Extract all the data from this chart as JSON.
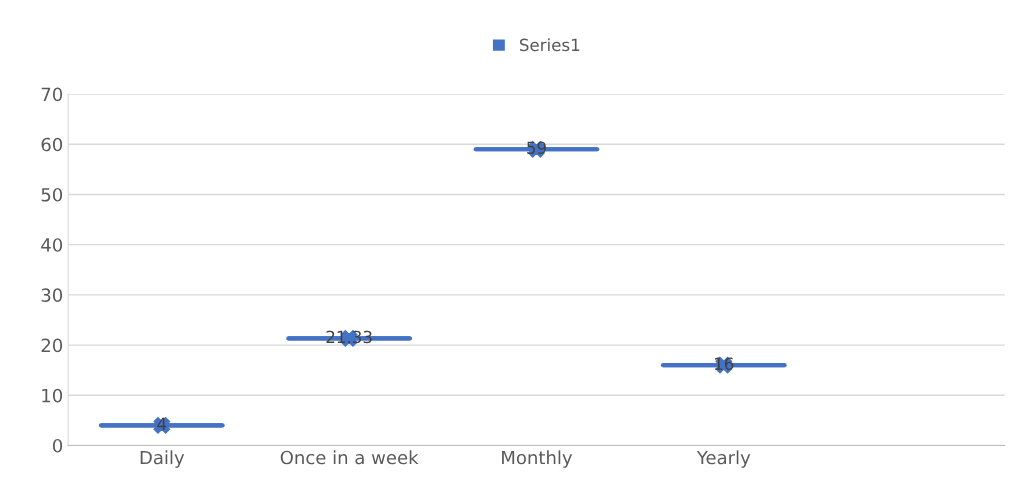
{
  "chart_data": {
    "type": "box",
    "categories": [
      "Daily",
      "Once in a week",
      "Monthly",
      "Yearly",
      null
    ],
    "series": [
      {
        "name": "Series1",
        "color": "#4472c4",
        "boxes": [
          {
            "low": 4,
            "q1": 4,
            "median": 4,
            "q3": 4,
            "high": 4,
            "mean": 4
          },
          {
            "low": 21.33,
            "q1": 21.33,
            "median": 21.33,
            "q3": 21.33,
            "high": 21.33,
            "mean": 21.33
          },
          {
            "low": 59,
            "q1": 59,
            "median": 59,
            "q3": 59,
            "high": 59,
            "mean": 59
          },
          {
            "low": 16,
            "q1": 16,
            "median": 16,
            "q3": 16,
            "high": 16,
            "mean": 16
          },
          null
        ],
        "value_labels": [
          "4",
          "21.33",
          "59",
          "16",
          null
        ]
      }
    ],
    "ylim": [
      0,
      70
    ],
    "yticks": [
      0,
      10,
      20,
      30,
      40,
      50,
      60,
      70
    ],
    "grid": "y",
    "legend": "top",
    "marker": "cross"
  }
}
